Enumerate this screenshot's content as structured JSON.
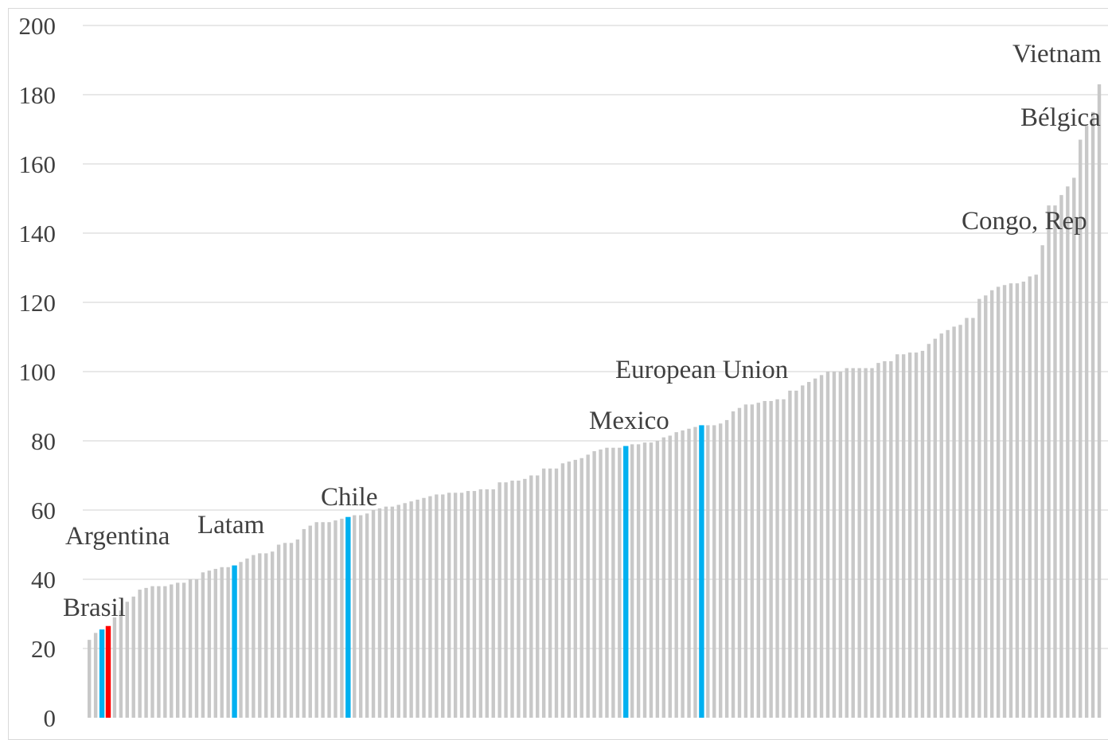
{
  "chart_data": {
    "type": "bar",
    "title": "",
    "xlabel": "",
    "ylabel": "",
    "ylim": [
      0,
      200
    ],
    "yticks": [
      0,
      20,
      40,
      60,
      80,
      100,
      120,
      140,
      160,
      180,
      200
    ],
    "grid": true,
    "legend": "none",
    "colors": {
      "default": "#c8c8c8",
      "highlight": "#00b0f0",
      "argentina": "#ff0000",
      "gridline": "#d9d9d9",
      "text": "#404040"
    },
    "values": [
      22.5,
      24.5,
      25.5,
      26.5,
      29,
      31,
      33.5,
      35,
      37,
      37.5,
      38,
      38,
      38,
      38.5,
      39,
      39,
      40,
      40,
      42,
      42.5,
      43,
      43.5,
      43.5,
      44,
      45,
      46,
      47,
      47.5,
      47.5,
      48,
      50,
      50.5,
      50.5,
      51.5,
      54.5,
      55.5,
      56.5,
      56.5,
      56.5,
      57,
      57.5,
      58,
      58.5,
      58.5,
      59,
      60,
      60.5,
      61,
      61,
      61.5,
      62,
      62.5,
      63,
      63.5,
      64,
      64.5,
      64.5,
      65,
      65,
      65,
      65.5,
      65.5,
      66,
      66,
      66,
      68,
      68,
      68.5,
      68.5,
      69,
      70,
      70,
      72,
      72,
      72,
      73.5,
      74,
      74.5,
      75,
      76,
      77,
      77.5,
      78,
      78,
      78,
      78.5,
      79,
      79,
      79.5,
      79.5,
      80,
      81,
      81.5,
      82.5,
      83,
      83.5,
      84,
      84.5,
      84.5,
      84.5,
      85,
      86,
      88.5,
      89.5,
      90.5,
      90.5,
      91,
      91.5,
      91.5,
      92,
      92,
      94.5,
      94.5,
      96,
      97,
      98,
      99,
      100,
      100,
      100,
      101,
      101,
      101,
      101,
      101,
      102.5,
      103,
      103,
      105,
      105,
      105.5,
      105.5,
      106,
      108,
      109.5,
      111,
      112,
      113,
      113.5,
      115.5,
      115.5,
      121,
      122,
      123.5,
      124.5,
      125,
      125.5,
      125.5,
      126,
      127.5,
      128,
      136.5,
      148,
      148,
      151,
      153.5,
      156,
      167,
      171,
      175,
      183
    ],
    "highlights": [
      {
        "index": 2,
        "color": "highlight"
      },
      {
        "index": 3,
        "color": "argentina"
      },
      {
        "index": 23,
        "color": "highlight"
      },
      {
        "index": 41,
        "color": "highlight"
      },
      {
        "index": 85,
        "color": "highlight"
      },
      {
        "index": 97,
        "color": "highlight"
      }
    ],
    "annotations": [
      {
        "text": "Brasil",
        "color": "text"
      },
      {
        "text": "Argentina",
        "color": "argentina"
      },
      {
        "text": "Latam",
        "color": "text"
      },
      {
        "text": "Chile",
        "color": "text"
      },
      {
        "text": "Mexico",
        "color": "text"
      },
      {
        "text": "European Union",
        "color": "text"
      },
      {
        "text": "Congo, Rep",
        "color": "text"
      },
      {
        "text": "Bélgica",
        "color": "text"
      },
      {
        "text": "Vietnam",
        "color": "text"
      }
    ]
  }
}
